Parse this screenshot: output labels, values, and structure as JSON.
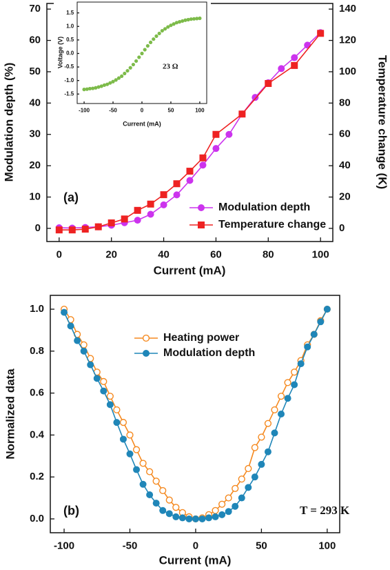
{
  "chart_data": [
    {
      "type": "line",
      "xlabel": "Current (mA)",
      "ylabel": "Modulation depth (%)",
      "y2label": "Temperature  change (K)",
      "xlim": [
        -4.7,
        104.7
      ],
      "xticks": [
        0,
        20,
        40,
        60,
        80,
        100
      ],
      "ylim": [
        -4.2,
        71.8
      ],
      "yticks": [
        0,
        10,
        20,
        30,
        40,
        50,
        60,
        70
      ],
      "y2lim": [
        -8.4,
        143.6
      ],
      "y2ticks": [
        0,
        20,
        40,
        60,
        80,
        100,
        120,
        140
      ],
      "legend": "lower right",
      "annotations": [
        "(a)"
      ],
      "series": [
        {
          "name": "Modulation depth",
          "color": "#cc33ee",
          "marker": "circle",
          "x": [
            0,
            5,
            10,
            15,
            20,
            25,
            30,
            35,
            40,
            45,
            50,
            55,
            60,
            65,
            70,
            75,
            80,
            85,
            90,
            95,
            100
          ],
          "values": [
            0.2,
            0.1,
            0.3,
            0.5,
            1.0,
            1.8,
            2.6,
            4.5,
            7.5,
            10.7,
            15.3,
            20.2,
            25.5,
            30.0,
            36.5,
            41.8,
            46.5,
            51.0,
            54.5,
            58.5,
            62.5
          ]
        },
        {
          "name": "Temperature change",
          "color": "#ee2222",
          "marker": "square",
          "axis": "y2",
          "x": [
            0,
            5,
            10,
            15,
            20,
            25,
            30,
            35,
            40,
            45,
            50,
            55,
            60,
            70,
            80,
            90,
            100
          ],
          "values": [
            -1,
            -1,
            -0.5,
            1,
            3.5,
            6,
            11.5,
            15.5,
            21.5,
            28.5,
            36.5,
            45,
            60,
            73,
            92.5,
            104,
            124.5
          ]
        }
      ]
    },
    {
      "type": "scatter",
      "xlabel": "Current (mA)",
      "ylabel": "Voltage (V)",
      "xlim": [
        -112,
        112
      ],
      "xticks": [
        -100,
        -50,
        0,
        50,
        100
      ],
      "ylim": [
        -1.85,
        1.9
      ],
      "yticks": [
        -1.5,
        {
          "value": -1.0,
          "label": "-1.0"
        },
        -0.5,
        {
          "value": 0,
          "label": "0.0"
        },
        0.5,
        {
          "value": 1.0,
          "label": "1.0"
        },
        1.5
      ],
      "annotations": [
        "23 Ω"
      ],
      "series": [
        {
          "color": "#7dbb4a",
          "marker": "circle",
          "x": [
            -100,
            -95,
            -90,
            -85,
            -80,
            -75,
            -70,
            -65,
            -60,
            -55,
            -50,
            -45,
            -40,
            -35,
            -30,
            -25,
            -20,
            -15,
            -10,
            -5,
            0,
            5,
            10,
            15,
            20,
            25,
            30,
            35,
            40,
            45,
            50,
            55,
            60,
            65,
            70,
            75,
            80,
            85,
            90,
            95,
            100
          ],
          "values": [
            -1.33,
            -1.32,
            -1.3,
            -1.29,
            -1.27,
            -1.24,
            -1.21,
            -1.17,
            -1.14,
            -1.09,
            -1.04,
            -0.98,
            -0.91,
            -0.84,
            -0.74,
            -0.64,
            -0.53,
            -0.41,
            -0.28,
            -0.14,
            0,
            0.14,
            0.28,
            0.41,
            0.53,
            0.64,
            0.74,
            0.84,
            0.91,
            0.98,
            1.04,
            1.09,
            1.14,
            1.17,
            1.2,
            1.23,
            1.25,
            1.27,
            1.28,
            1.29,
            1.3
          ]
        }
      ]
    },
    {
      "type": "line",
      "xlabel": "Current (mA)",
      "ylabel": "Normalized data",
      "xlim": [
        -110.5,
        109.5
      ],
      "xticks": [
        -100,
        -50,
        0,
        50,
        100
      ],
      "ylim": [
        -0.066,
        1.066
      ],
      "yticks": [
        {
          "value": 0,
          "label": "0.0"
        },
        0.2,
        0.4,
        0.6,
        0.8,
        {
          "value": 1.0,
          "label": "1.0"
        }
      ],
      "legend": "upper center",
      "annotations": [
        "(b)",
        "T = 293 K"
      ],
      "series": [
        {
          "name": "Heating power",
          "color": "#f5891f",
          "marker": "open-circle",
          "x": [
            -100,
            -95,
            -90,
            -85,
            -80,
            -75,
            -70,
            -65,
            -60,
            -55,
            -50,
            -45,
            -40,
            -35,
            -30,
            -25,
            -20,
            -15,
            -10,
            -5,
            0,
            5,
            10,
            15,
            20,
            25,
            30,
            35,
            40,
            45,
            50,
            55,
            60,
            65,
            70,
            75,
            80,
            85,
            90,
            95,
            100
          ],
          "values": [
            1.0,
            0.95,
            0.88,
            0.83,
            0.765,
            0.7,
            0.655,
            0.585,
            0.52,
            0.46,
            0.4,
            0.33,
            0.265,
            0.225,
            0.18,
            0.135,
            0.09,
            0.055,
            0.03,
            0.01,
            0,
            0.005,
            0.02,
            0.04,
            0.07,
            0.1,
            0.145,
            0.19,
            0.24,
            0.34,
            0.39,
            0.455,
            0.52,
            0.585,
            0.65,
            0.7,
            0.755,
            0.83,
            0.88,
            0.945,
            1.0
          ]
        },
        {
          "name": "Modulation depth",
          "color": "#1f86b8",
          "marker": "circle",
          "x": [
            -100,
            -95,
            -90,
            -85,
            -80,
            -75,
            -70,
            -65,
            -60,
            -55,
            -50,
            -45,
            -40,
            -35,
            -30,
            -25,
            -20,
            -15,
            -10,
            -5,
            0,
            5,
            10,
            15,
            20,
            25,
            30,
            35,
            40,
            45,
            50,
            55,
            60,
            65,
            70,
            75,
            80,
            85,
            90,
            95,
            100
          ],
          "values": [
            0.985,
            0.92,
            0.85,
            0.8,
            0.735,
            0.67,
            0.61,
            0.545,
            0.46,
            0.38,
            0.31,
            0.235,
            0.165,
            0.115,
            0.075,
            0.04,
            0.025,
            0.01,
            0.005,
            0,
            0,
            0,
            0.005,
            0.01,
            0.02,
            0.035,
            0.06,
            0.1,
            0.15,
            0.2,
            0.26,
            0.32,
            0.41,
            0.5,
            0.575,
            0.64,
            0.74,
            0.82,
            0.88,
            0.94,
            1.0
          ]
        }
      ]
    }
  ]
}
